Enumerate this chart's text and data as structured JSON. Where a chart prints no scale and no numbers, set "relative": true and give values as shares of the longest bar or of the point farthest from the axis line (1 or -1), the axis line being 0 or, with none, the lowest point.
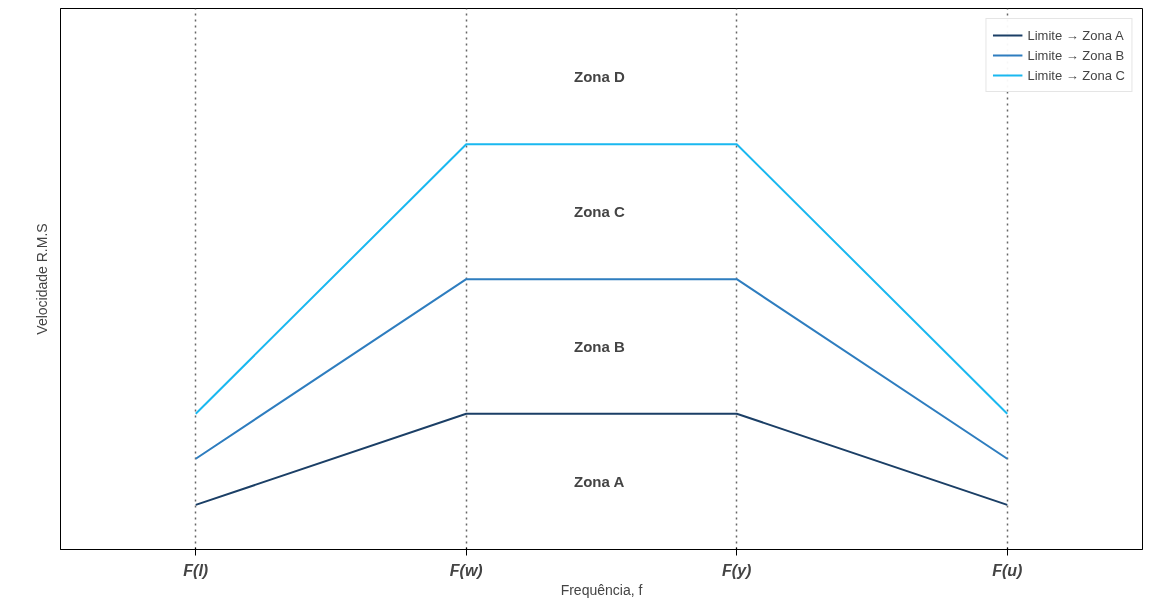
{
  "chart_data": {
    "type": "line",
    "relative": true,
    "xlabel": "Frequência, f",
    "ylabel": "Velocidade R.M.S",
    "categories": [
      "F(l)",
      "F(w)",
      "F(y)",
      "F(u)"
    ],
    "series": [
      {
        "name": "Limite → Zona A",
        "color": "#1b3f66",
        "values": [
          0.11,
          0.335,
          0.335,
          0.11
        ]
      },
      {
        "name": "Limite → Zona B",
        "color": "#2e7dbf",
        "values": [
          0.224,
          0.667,
          0.667,
          0.224
        ]
      },
      {
        "name": "Limite → Zona C",
        "color": "#1ab8f0",
        "values": [
          0.335,
          1,
          1,
          0.335
        ]
      }
    ],
    "annotations": [
      "Zona  D",
      "Zona  C",
      "Zona  B",
      "Zona  A"
    ],
    "legend": "top right",
    "grid": "x",
    "marker": "none",
    "line_style": "solid"
  }
}
